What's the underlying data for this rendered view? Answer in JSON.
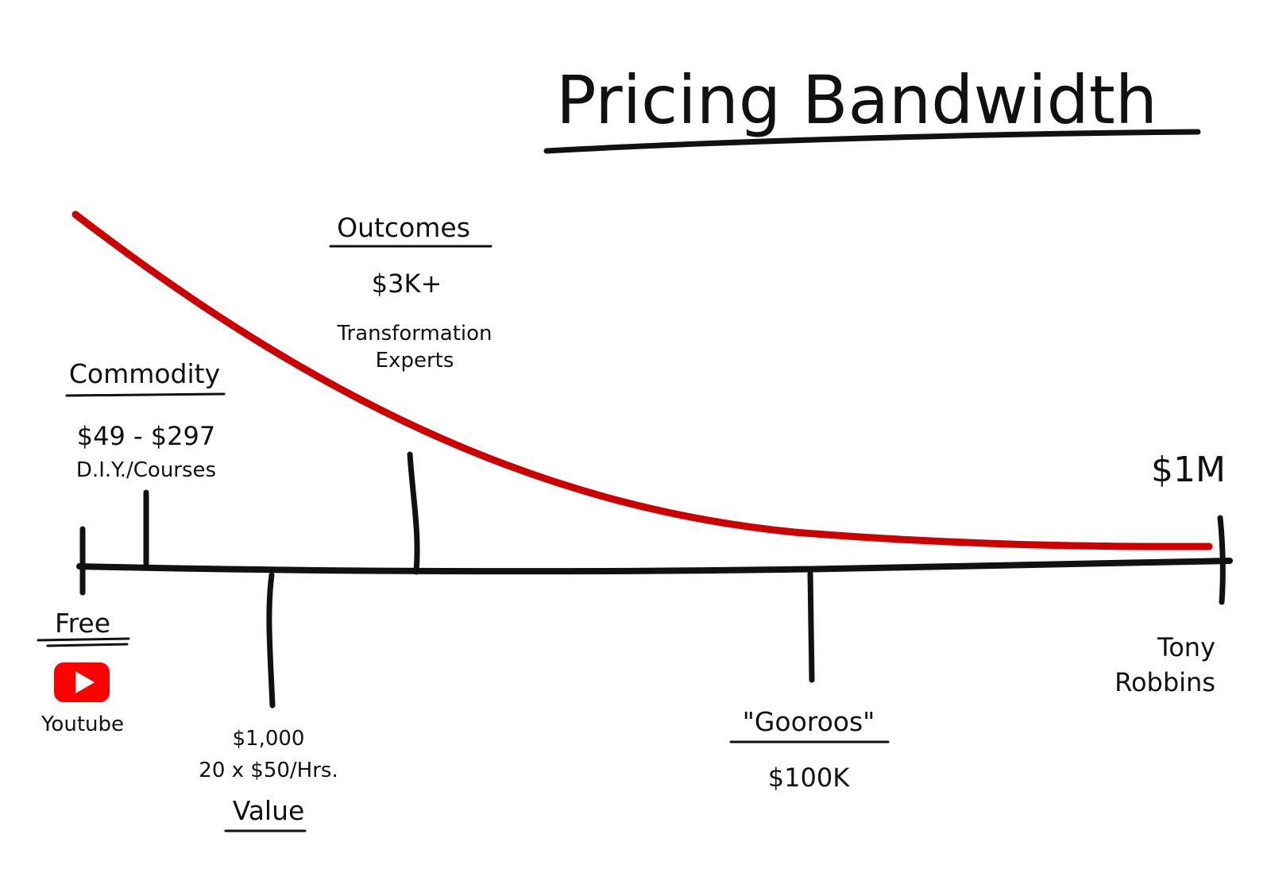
{
  "title": "Pricing Bandwidth",
  "colors": {
    "curve": "#cc0000",
    "ink": "#111111",
    "youtube": "#ff0000"
  },
  "labels": {
    "commodity": {
      "heading": "Commodity",
      "price": "$49 - $297",
      "note": "D.I.Y./Courses"
    },
    "outcomes": {
      "heading": "Outcomes",
      "price": "$3K+",
      "note_line1": "Transformation",
      "note_line2": "Experts"
    },
    "free": {
      "heading": "Free",
      "note": "Youtube",
      "icon": "youtube-play-icon"
    },
    "value": {
      "price": "$1,000",
      "note": "20 x $50/Hrs.",
      "heading": "Value"
    },
    "gooroos": {
      "heading": "\"Gooroos\"",
      "price": "$100K"
    },
    "top": {
      "price": "$1M",
      "name_line1": "Tony",
      "name_line2": "Robbins"
    }
  }
}
